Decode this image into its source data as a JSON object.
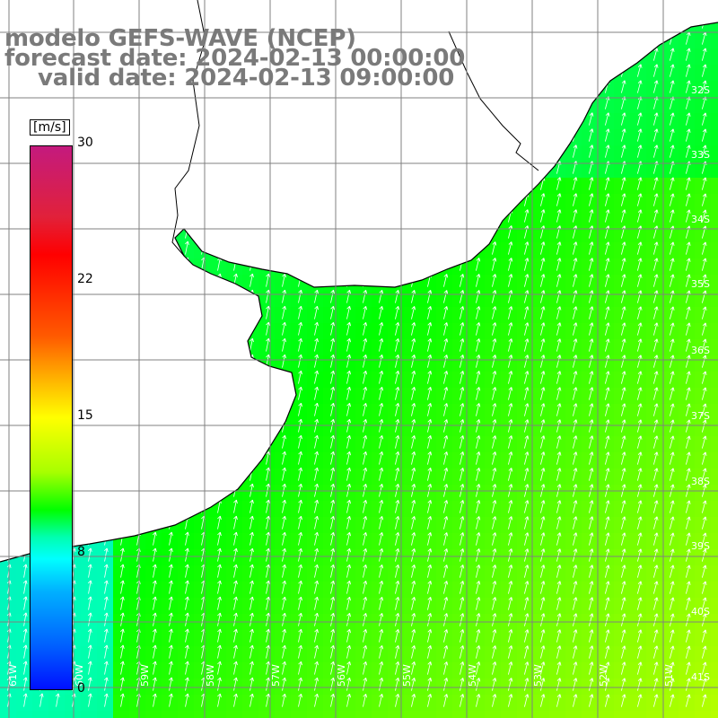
{
  "title": {
    "line1": "modelo GEFS-WAVE (NCEP)",
    "line2": "forecast date: 2024-02-13 00:00:00",
    "line3": "valid date: 2024-02-13 09:00:00"
  },
  "colorbar": {
    "unit": "[m/s]",
    "ticks": [
      "30",
      "22",
      "15",
      "8",
      "0"
    ],
    "colors": [
      "#c41a7e",
      "#ff0000",
      "#ffb400",
      "#ffff00",
      "#00ff00",
      "#00ffff",
      "#0010ff"
    ]
  },
  "map": {
    "lat_labels": [
      "32S",
      "33S",
      "34S",
      "35S",
      "36S",
      "37S",
      "38S",
      "39S",
      "40S",
      "41S"
    ],
    "lon_labels": [
      "61W",
      "60W",
      "59W",
      "58W",
      "57W",
      "56W",
      "55W",
      "54W",
      "53W",
      "52W",
      "51W"
    ],
    "land_color": "#ffffff",
    "grid_color": "#808080"
  }
}
